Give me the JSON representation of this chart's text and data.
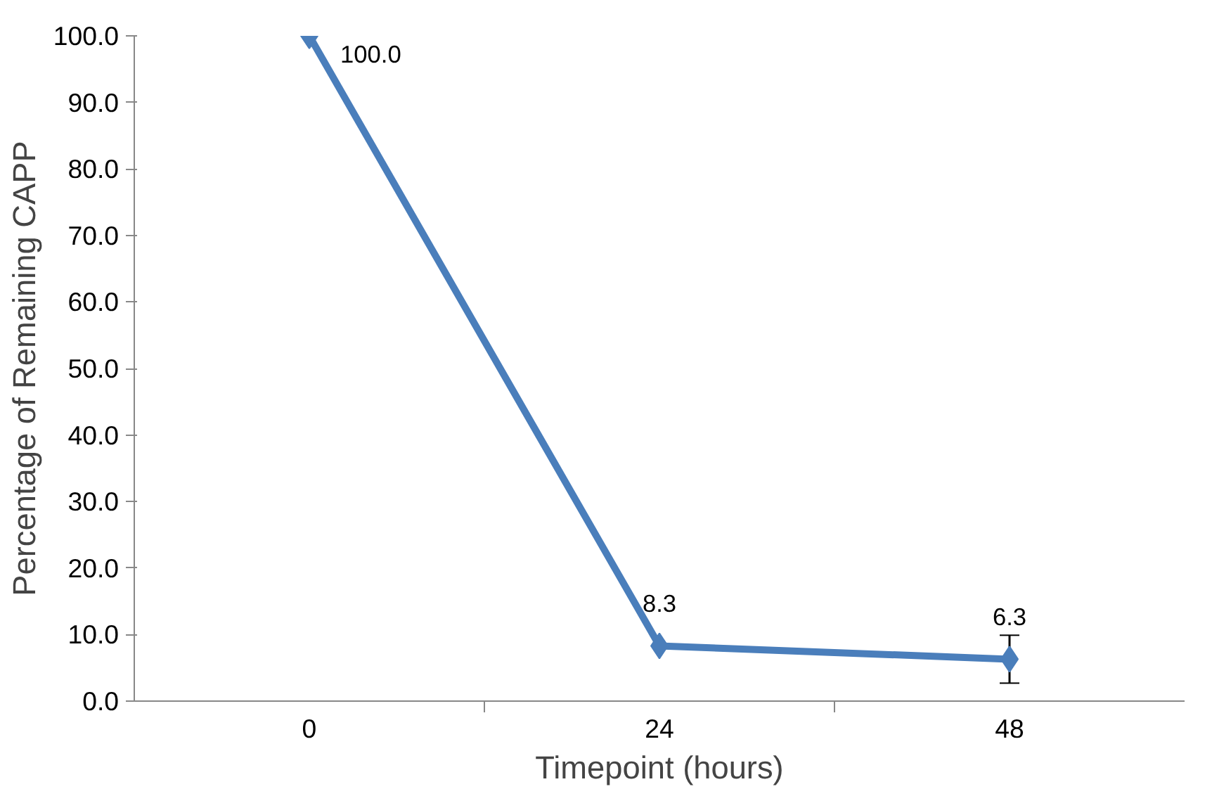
{
  "chart_data": {
    "type": "line",
    "xlabel": "Timepoint (hours)",
    "ylabel": "Percentage of Remaining CAPP",
    "categories": [
      "0",
      "24",
      "48"
    ],
    "series": [
      {
        "color": "#4a7ebb",
        "values": [
          100.0,
          8.3,
          6.3
        ],
        "errors": [
          null,
          null,
          3.6
        ],
        "value_labels": [
          "100.0",
          "8.3",
          "6.3"
        ]
      }
    ],
    "ylim": [
      0,
      100
    ],
    "yticks": [
      {
        "value": 0,
        "label": "0.0"
      },
      {
        "value": 10,
        "label": "10.0"
      },
      {
        "value": 20,
        "label": "20.0"
      },
      {
        "value": 30,
        "label": "30.0"
      },
      {
        "value": 40,
        "label": "40.0"
      },
      {
        "value": 50,
        "label": "50.0"
      },
      {
        "value": 60,
        "label": "60.0"
      },
      {
        "value": 70,
        "label": "70.0"
      },
      {
        "value": 80,
        "label": "80.0"
      },
      {
        "value": 90,
        "label": "90.0"
      },
      {
        "value": 100,
        "label": "100.0"
      }
    ],
    "grid": false,
    "marker": "diamond",
    "line_style": "solid"
  }
}
